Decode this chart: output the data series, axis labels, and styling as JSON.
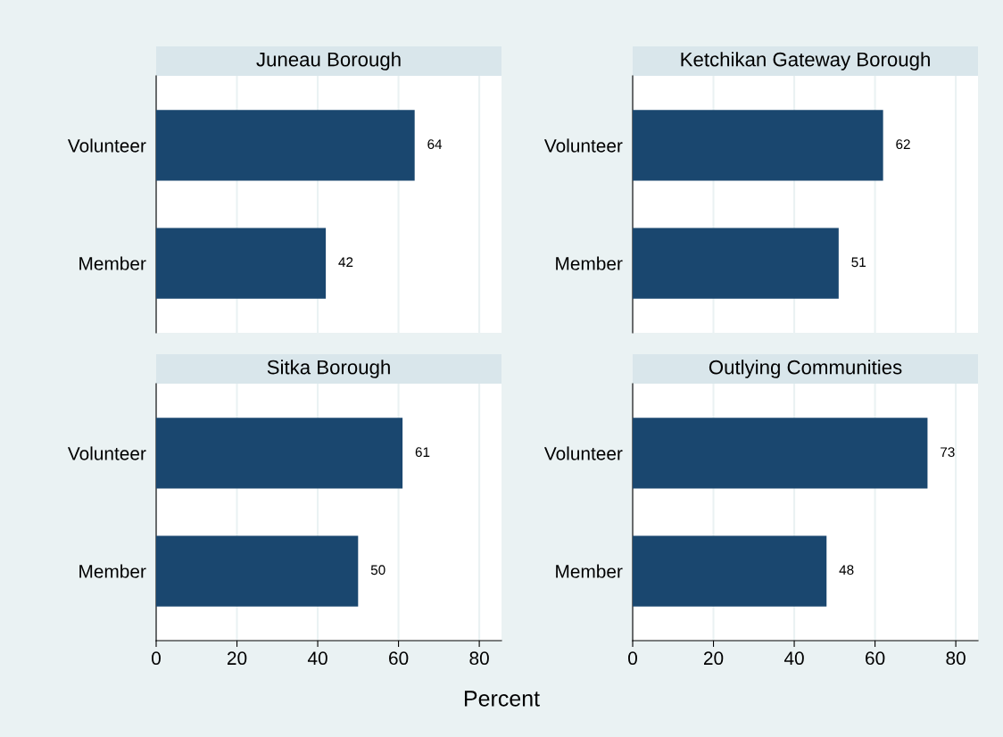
{
  "chart_data": [
    {
      "type": "bar",
      "orientation": "horizontal",
      "title": "Juneau Borough",
      "categories": [
        "Volunteer",
        "Member"
      ],
      "values": [
        64,
        42
      ],
      "color": "#1a476f",
      "xlim": [
        0,
        85.5
      ],
      "xticks": [
        0,
        20,
        40,
        60,
        80
      ],
      "grid": "x",
      "data_labels": true,
      "tick_labels": "y"
    },
    {
      "type": "bar",
      "orientation": "horizontal",
      "title": "Ketchikan Gateway Borough",
      "categories": [
        "Volunteer",
        "Member"
      ],
      "values": [
        62,
        51
      ],
      "color": "#1a476f",
      "xlim": [
        0,
        85.5
      ],
      "xticks": [
        0,
        20,
        40,
        60,
        80
      ],
      "grid": "x",
      "data_labels": true,
      "tick_labels": "y"
    },
    {
      "type": "bar",
      "orientation": "horizontal",
      "title": "Sitka Borough",
      "categories": [
        "Volunteer",
        "Member"
      ],
      "values": [
        61,
        50
      ],
      "color": "#1a476f",
      "xlim": [
        0,
        85.5
      ],
      "xticks": [
        0,
        20,
        40,
        60,
        80
      ],
      "grid": "x",
      "data_labels": true,
      "xlabel": "Percent"
    },
    {
      "type": "bar",
      "orientation": "horizontal",
      "title": "Outlying Communities",
      "categories": [
        "Volunteer",
        "Member"
      ],
      "values": [
        73,
        48
      ],
      "color": "#1a476f",
      "xlim": [
        0,
        85.5
      ],
      "xticks": [
        0,
        20,
        40,
        60,
        80
      ],
      "grid": "x",
      "data_labels": true
    }
  ]
}
